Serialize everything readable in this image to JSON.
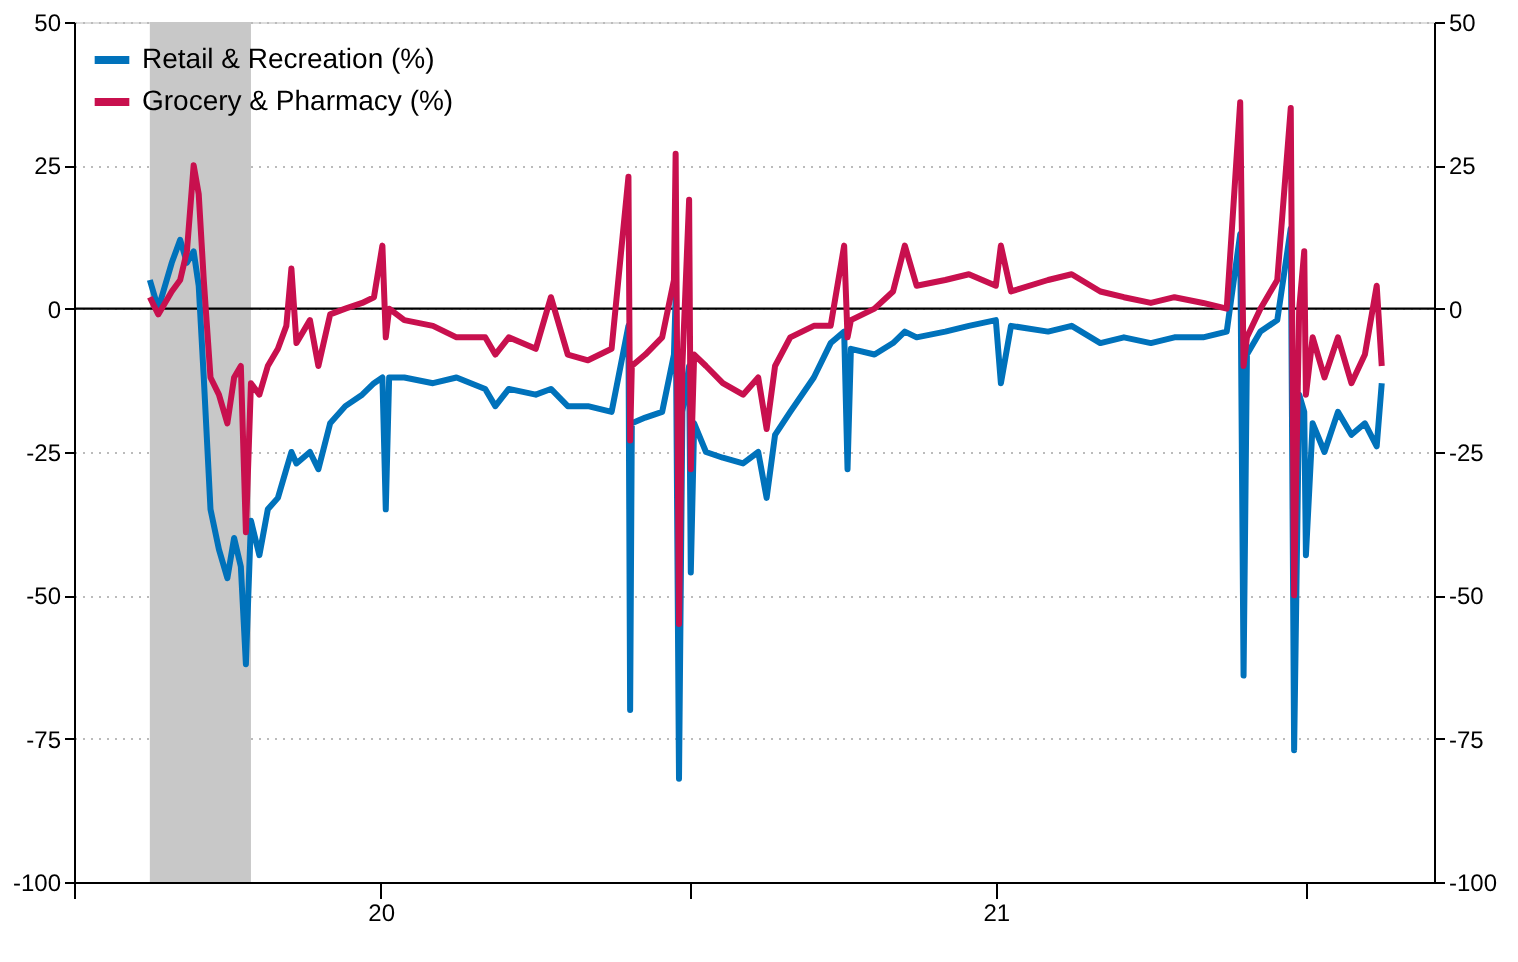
{
  "chart_data": {
    "type": "line",
    "x": [
      "2020-02-15",
      "2020-02-20",
      "2020-02-28",
      "2020-03-04",
      "2020-03-08",
      "2020-03-12",
      "2020-03-15",
      "2020-03-18",
      "2020-03-22",
      "2020-03-27",
      "2020-04-01",
      "2020-04-05",
      "2020-04-09",
      "2020-04-12",
      "2020-04-15",
      "2020-04-20",
      "2020-04-25",
      "2020-05-01",
      "2020-05-06",
      "2020-05-09",
      "2020-05-12",
      "2020-05-20",
      "2020-05-25",
      "2020-06-01",
      "2020-06-10",
      "2020-06-20",
      "2020-06-27",
      "2020-07-02",
      "2020-07-04",
      "2020-07-06",
      "2020-07-15",
      "2020-08-01",
      "2020-08-15",
      "2020-09-01",
      "2020-09-07",
      "2020-09-15",
      "2020-10-01",
      "2020-10-10",
      "2020-10-20",
      "2020-11-01",
      "2020-11-15",
      "2020-11-25",
      "2020-11-26",
      "2020-11-27",
      "2020-12-05",
      "2020-12-15",
      "2020-12-22",
      "2020-12-23",
      "2020-12-25",
      "2020-12-27",
      "2020-12-31",
      "2021-01-01",
      "2021-01-03",
      "2021-01-10",
      "2021-01-20",
      "2021-02-01",
      "2021-02-10",
      "2021-02-15",
      "2021-02-20",
      "2021-03-01",
      "2021-03-15",
      "2021-03-25",
      "2021-04-02",
      "2021-04-04",
      "2021-04-06",
      "2021-04-20",
      "2021-05-01",
      "2021-05-08",
      "2021-05-15",
      "2021-06-01",
      "2021-06-15",
      "2021-07-01",
      "2021-07-04",
      "2021-07-10",
      "2021-08-01",
      "2021-08-15",
      "2021-09-01",
      "2021-09-15",
      "2021-10-01",
      "2021-10-15",
      "2021-11-01",
      "2021-11-15",
      "2021-11-23",
      "2021-11-25",
      "2021-11-27",
      "2021-12-05",
      "2021-12-15",
      "2021-12-23",
      "2021-12-25",
      "2021-12-28",
      "2021-12-31",
      "2022-01-01",
      "2022-01-05",
      "2022-01-12",
      "2022-01-20",
      "2022-01-28",
      "2022-02-05",
      "2022-02-12",
      "2022-02-15"
    ],
    "series": [
      {
        "name": "Retail & Recreation (%)",
        "color": "#0072bb",
        "values": [
          5,
          0,
          8,
          12,
          8,
          10,
          4,
          -12,
          -35,
          -42,
          -47,
          -40,
          -45,
          -62,
          -37,
          -43,
          -35,
          -33,
          -28,
          -25,
          -27,
          -25,
          -28,
          -20,
          -17,
          -15,
          -13,
          -12,
          -35,
          -12,
          -12,
          -13,
          -12,
          -14,
          -17,
          -14,
          -15,
          -14,
          -17,
          -17,
          -18,
          -3,
          -70,
          -20,
          -19,
          -18,
          -8,
          2,
          -82,
          -18,
          -10,
          -46,
          -20,
          -25,
          -26,
          -27,
          -25,
          -33,
          -22,
          -18,
          -12,
          -6,
          -4,
          -28,
          -7,
          -8,
          -6,
          -4,
          -5,
          -4,
          -3,
          -2,
          -13,
          -3,
          -4,
          -3,
          -6,
          -5,
          -6,
          -5,
          -5,
          -4,
          13,
          -64,
          -8,
          -4,
          -2,
          14,
          -77,
          -15,
          -18,
          -43,
          -20,
          -25,
          -18,
          -22,
          -20,
          -24,
          -13
        ]
      },
      {
        "name": "Grocery & Pharmacy (%)",
        "color": "#c8104e",
        "values": [
          2,
          -1,
          3,
          5,
          10,
          25,
          20,
          5,
          -12,
          -15,
          -20,
          -12,
          -10,
          -39,
          -13,
          -15,
          -10,
          -7,
          -3,
          7,
          -6,
          -2,
          -10,
          -1,
          0,
          1,
          2,
          11,
          -5,
          0,
          -2,
          -3,
          -5,
          -5,
          -8,
          -5,
          -7,
          2,
          -8,
          -9,
          -7,
          23,
          -23,
          -10,
          -8,
          -5,
          5,
          27,
          -55,
          -10,
          19,
          -28,
          -8,
          -10,
          -13,
          -15,
          -12,
          -21,
          -10,
          -5,
          -3,
          -3,
          11,
          -5,
          -2,
          0,
          3,
          11,
          4,
          5,
          6,
          4,
          11,
          3,
          5,
          6,
          3,
          2,
          1,
          2,
          1,
          0,
          36,
          -10,
          -5,
          0,
          5,
          35,
          -50,
          0,
          10,
          -15,
          -5,
          -12,
          -5,
          -13,
          -8,
          4,
          -10
        ]
      }
    ],
    "xlim": [
      "2020-01-01",
      "2022-03-18"
    ],
    "xticks": [
      {
        "value": "2020-01-01",
        "label": null
      },
      {
        "value": "2020-07-01",
        "label": "20"
      },
      {
        "value": "2021-01-01",
        "label": null
      },
      {
        "value": "2021-07-01",
        "label": "21"
      },
      {
        "value": "2022-01-01",
        "label": null
      }
    ],
    "ylim": [
      -100,
      50
    ],
    "yticks": [
      -100,
      -75,
      -50,
      -25,
      0,
      25,
      50
    ],
    "y2lim": [
      -100,
      50
    ],
    "y2ticks": [
      -100,
      -75,
      -50,
      -25,
      0,
      25,
      50
    ],
    "ref_lines": [
      {
        "axis": "y",
        "value": 0,
        "color": "#000000"
      }
    ],
    "bands": [
      {
        "axis": "x",
        "from": "2020-02-15",
        "to": "2020-04-15",
        "color": "#c8c8c8"
      }
    ],
    "grid": "y",
    "legend": "top left",
    "line_style": "solid"
  }
}
